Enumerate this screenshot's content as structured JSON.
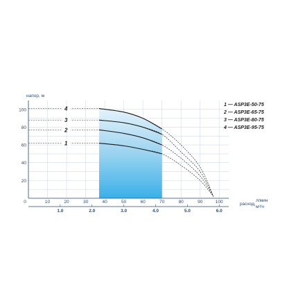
{
  "chart_data": {
    "type": "line",
    "title": "",
    "ylabel": "напор, м",
    "xlabel_top": "л/мин",
    "xlabel_mid": "расход,",
    "xlabel_bottom": "м³/ч",
    "ylim": [
      0,
      110
    ],
    "xlim": [
      0,
      105
    ],
    "y_ticks": [
      20,
      40,
      60,
      80,
      100
    ],
    "x_ticks_lpm": [
      0,
      10,
      20,
      30,
      40,
      50,
      60,
      70,
      80,
      90,
      100
    ],
    "x_ticks_m3h": [
      {
        "label": "1.0",
        "lpm": 16.67
      },
      {
        "label": "2.0",
        "lpm": 33.33
      },
      {
        "label": "3.0",
        "lpm": 50
      },
      {
        "label": "4.0",
        "lpm": 66.67
      },
      {
        "label": "5.0",
        "lpm": 83.33
      },
      {
        "label": "6.0",
        "lpm": 100
      }
    ],
    "working_range_lpm": [
      37,
      70
    ],
    "grid": true,
    "legend_position": "right",
    "series": [
      {
        "num": "1",
        "name": "1 — ASP3E-50-75",
        "x": [
          37,
          50,
          60,
          70,
          80,
          90,
          97
        ],
        "y": [
          62,
          59,
          55,
          50,
          37,
          20,
          2
        ]
      },
      {
        "num": "2",
        "name": "2 — ASP3E-65-75",
        "x": [
          37,
          50,
          60,
          70,
          80,
          90,
          97
        ],
        "y": [
          77,
          73,
          68,
          60,
          45,
          25,
          2
        ]
      },
      {
        "num": "3",
        "name": "3 — ASP3E-80-75",
        "x": [
          37,
          50,
          60,
          70,
          80,
          90,
          97
        ],
        "y": [
          88,
          85,
          80,
          72,
          52,
          30,
          2
        ]
      },
      {
        "num": "4",
        "name": "4 — ASP3E-95-75",
        "x": [
          37,
          50,
          60,
          70,
          80,
          90,
          97
        ],
        "y": [
          101,
          97,
          90,
          78,
          60,
          35,
          2
        ]
      }
    ]
  }
}
